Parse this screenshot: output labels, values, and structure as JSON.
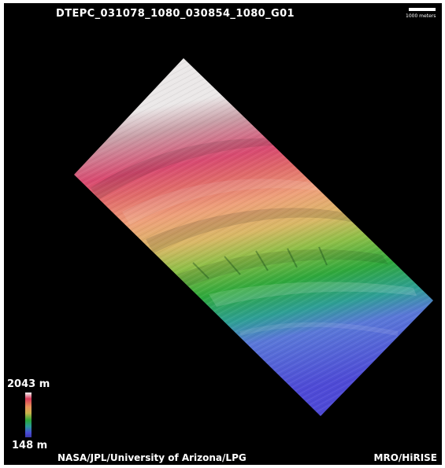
{
  "header": {
    "product_id": "DTEPC_031078_1080_030854_1080_G01"
  },
  "scale_bar": {
    "label": "1000 meters"
  },
  "elevation_legend": {
    "max_label": "2043 m",
    "min_label": "148 m"
  },
  "footer": {
    "credit_left": "NASA/JPL/University of Arizona/LPG",
    "credit_right": "MRO/HiRISE"
  },
  "colors": {
    "background": "#000000",
    "text": "#ffffff",
    "high_elevation": "#d83a5a",
    "mid_elevation": "#2aa83a",
    "low_elevation": "#4a4ad8"
  }
}
